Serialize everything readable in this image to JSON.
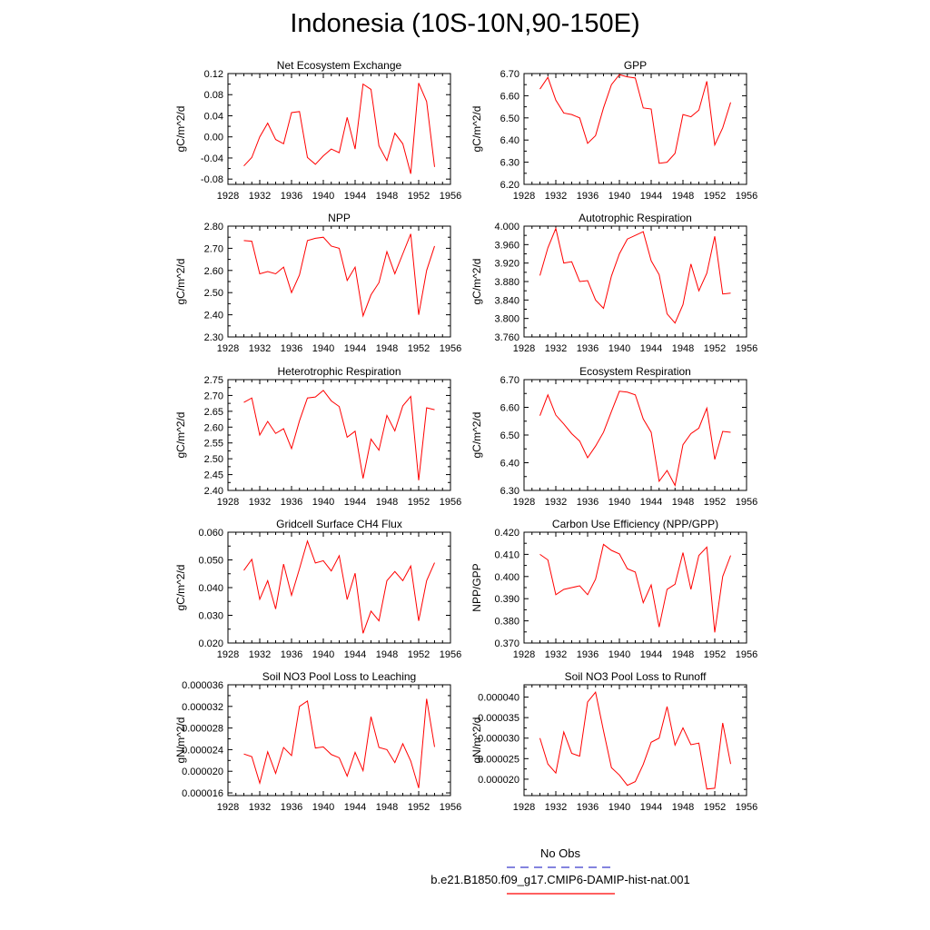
{
  "figure": {
    "title": "Indonesia (10S-10N,90-150E)",
    "line_color": "#ff0000",
    "obs_color": "#3b3bcc"
  },
  "legend": {
    "obs_label": "No Obs",
    "model_label": "b.e21.B1850.f09_g17.CMIP6-DAMIP-hist-nat.001"
  },
  "chart_data": [
    {
      "type": "line",
      "title": "Net Ecosystem Exchange",
      "xlabel": "",
      "ylabel": "gC/m^2/d",
      "xlim": [
        1928,
        1956
      ],
      "xticks": [
        1928,
        1932,
        1936,
        1940,
        1944,
        1948,
        1952,
        1956
      ],
      "ylim": [
        -0.09,
        0.12
      ],
      "yticks": [
        -0.08,
        -0.04,
        0.0,
        0.04,
        0.08,
        0.12
      ],
      "yticklabels": [
        "-0.08",
        "-0.04",
        "0.00",
        "0.04",
        "0.08",
        "0.12"
      ],
      "x": [
        1930,
        1931,
        1932,
        1933,
        1934,
        1935,
        1936,
        1937,
        1938,
        1939,
        1940,
        1941,
        1942,
        1943,
        1944,
        1945,
        1946,
        1947,
        1948,
        1949,
        1950,
        1951,
        1952,
        1953,
        1954
      ],
      "series": [
        {
          "values": [
            -0.055,
            -0.039,
            0.0,
            0.026,
            -0.005,
            -0.013,
            0.046,
            0.048,
            -0.039,
            -0.052,
            -0.036,
            -0.023,
            -0.03,
            0.037,
            -0.023,
            0.1,
            0.09,
            -0.017,
            -0.045,
            0.007,
            -0.013,
            -0.07,
            0.102,
            0.067,
            -0.057
          ]
        }
      ]
    },
    {
      "type": "line",
      "title": "GPP",
      "xlabel": "",
      "ylabel": "gC/m^2/d",
      "xlim": [
        1928,
        1956
      ],
      "xticks": [
        1928,
        1932,
        1936,
        1940,
        1944,
        1948,
        1952,
        1956
      ],
      "ylim": [
        6.2,
        6.7
      ],
      "yticks": [
        6.2,
        6.3,
        6.4,
        6.5,
        6.6,
        6.7
      ],
      "yticklabels": [
        "6.20",
        "6.30",
        "6.40",
        "6.50",
        "6.60",
        "6.70"
      ],
      "x": [
        1930,
        1931,
        1932,
        1933,
        1934,
        1935,
        1936,
        1937,
        1938,
        1939,
        1940,
        1941,
        1942,
        1943,
        1944,
        1945,
        1946,
        1947,
        1948,
        1949,
        1950,
        1951,
        1952,
        1953,
        1954
      ],
      "series": [
        {
          "values": [
            6.63,
            6.683,
            6.58,
            6.522,
            6.515,
            6.5,
            6.385,
            6.42,
            6.545,
            6.65,
            6.695,
            6.685,
            6.68,
            6.545,
            6.54,
            6.295,
            6.3,
            6.34,
            6.515,
            6.505,
            6.535,
            6.665,
            6.378,
            6.455,
            6.57
          ]
        }
      ]
    },
    {
      "type": "line",
      "title": "NPP",
      "xlabel": "",
      "ylabel": "gC/m^2/d",
      "xlim": [
        1928,
        1956
      ],
      "xticks": [
        1928,
        1932,
        1936,
        1940,
        1944,
        1948,
        1952,
        1956
      ],
      "ylim": [
        2.3,
        2.8
      ],
      "yticks": [
        2.3,
        2.4,
        2.5,
        2.6,
        2.7,
        2.8
      ],
      "yticklabels": [
        "2.30",
        "2.40",
        "2.50",
        "2.60",
        "2.70",
        "2.80"
      ],
      "x": [
        1930,
        1931,
        1932,
        1933,
        1934,
        1935,
        1936,
        1937,
        1938,
        1939,
        1940,
        1941,
        1942,
        1943,
        1944,
        1945,
        1946,
        1947,
        1948,
        1949,
        1950,
        1951,
        1952,
        1953,
        1954
      ],
      "series": [
        {
          "values": [
            2.735,
            2.732,
            2.585,
            2.595,
            2.585,
            2.615,
            2.5,
            2.58,
            2.735,
            2.745,
            2.75,
            2.71,
            2.7,
            2.555,
            2.615,
            2.395,
            2.49,
            2.545,
            2.685,
            2.585,
            2.675,
            2.765,
            2.4,
            2.6,
            2.71
          ]
        }
      ]
    },
    {
      "type": "line",
      "title": "Autotrophic Respiration",
      "xlabel": "",
      "ylabel": "gC/m^2/d",
      "xlim": [
        1928,
        1956
      ],
      "xticks": [
        1928,
        1932,
        1936,
        1940,
        1944,
        1948,
        1952,
        1956
      ],
      "ylim": [
        3.76,
        4.0
      ],
      "yticks": [
        3.76,
        3.8,
        3.84,
        3.88,
        3.92,
        3.96,
        4.0
      ],
      "yticklabels": [
        "3.760",
        "3.800",
        "3.840",
        "3.880",
        "3.920",
        "3.960",
        "4.000"
      ],
      "x": [
        1930,
        1931,
        1932,
        1933,
        1934,
        1935,
        1936,
        1937,
        1938,
        1939,
        1940,
        1941,
        1942,
        1943,
        1944,
        1945,
        1946,
        1947,
        1948,
        1949,
        1950,
        1951,
        1952,
        1953,
        1954
      ],
      "series": [
        {
          "values": [
            3.893,
            3.953,
            3.995,
            3.92,
            3.923,
            3.88,
            3.882,
            3.84,
            3.822,
            3.892,
            3.94,
            3.972,
            3.98,
            3.988,
            3.925,
            3.895,
            3.81,
            3.79,
            3.83,
            3.918,
            3.86,
            3.898,
            3.978,
            3.853,
            3.855
          ]
        }
      ]
    },
    {
      "type": "line",
      "title": "Heterotrophic Respiration",
      "xlabel": "",
      "ylabel": "gC/m^2/d",
      "xlim": [
        1928,
        1956
      ],
      "xticks": [
        1928,
        1932,
        1936,
        1940,
        1944,
        1948,
        1952,
        1956
      ],
      "ylim": [
        2.4,
        2.75
      ],
      "yticks": [
        2.4,
        2.45,
        2.5,
        2.55,
        2.6,
        2.65,
        2.7,
        2.75
      ],
      "yticklabels": [
        "2.40",
        "2.45",
        "2.50",
        "2.55",
        "2.60",
        "2.65",
        "2.70",
        "2.75"
      ],
      "x": [
        1930,
        1931,
        1932,
        1933,
        1934,
        1935,
        1936,
        1937,
        1938,
        1939,
        1940,
        1941,
        1942,
        1943,
        1944,
        1945,
        1946,
        1947,
        1948,
        1949,
        1950,
        1951,
        1952,
        1953,
        1954
      ],
      "series": [
        {
          "values": [
            2.678,
            2.692,
            2.575,
            2.618,
            2.58,
            2.595,
            2.532,
            2.62,
            2.692,
            2.695,
            2.716,
            2.683,
            2.665,
            2.568,
            2.587,
            2.438,
            2.562,
            2.527,
            2.637,
            2.588,
            2.667,
            2.697,
            2.432,
            2.661,
            2.655
          ]
        }
      ]
    },
    {
      "type": "line",
      "title": "Ecosystem Respiration",
      "xlabel": "",
      "ylabel": "gC/m^2/d",
      "xlim": [
        1928,
        1956
      ],
      "xticks": [
        1928,
        1932,
        1936,
        1940,
        1944,
        1948,
        1952,
        1956
      ],
      "ylim": [
        6.3,
        6.7
      ],
      "yticks": [
        6.3,
        6.4,
        6.5,
        6.6,
        6.7
      ],
      "yticklabels": [
        "6.30",
        "6.40",
        "6.50",
        "6.60",
        "6.70"
      ],
      "x": [
        1930,
        1931,
        1932,
        1933,
        1934,
        1935,
        1936,
        1937,
        1938,
        1939,
        1940,
        1941,
        1942,
        1943,
        1944,
        1945,
        1946,
        1947,
        1948,
        1949,
        1950,
        1951,
        1952,
        1953,
        1954
      ],
      "series": [
        {
          "values": [
            6.57,
            6.645,
            6.572,
            6.54,
            6.505,
            6.478,
            6.418,
            6.46,
            6.51,
            6.585,
            6.658,
            6.655,
            6.645,
            6.558,
            6.51,
            6.333,
            6.372,
            6.318,
            6.465,
            6.505,
            6.525,
            6.597,
            6.412,
            6.513,
            6.51
          ]
        }
      ]
    },
    {
      "type": "line",
      "title": "Gridcell Surface CH4 Flux",
      "xlabel": "",
      "ylabel": "gC/m^2/d",
      "xlim": [
        1928,
        1956
      ],
      "xticks": [
        1928,
        1932,
        1936,
        1940,
        1944,
        1948,
        1952,
        1956
      ],
      "ylim": [
        0.02,
        0.06
      ],
      "yticks": [
        0.02,
        0.03,
        0.04,
        0.05,
        0.06
      ],
      "yticklabels": [
        "0.020",
        "0.030",
        "0.040",
        "0.050",
        "0.060"
      ],
      "x": [
        1930,
        1931,
        1932,
        1933,
        1934,
        1935,
        1936,
        1937,
        1938,
        1939,
        1940,
        1941,
        1942,
        1943,
        1944,
        1945,
        1946,
        1947,
        1948,
        1949,
        1950,
        1951,
        1952,
        1953,
        1954
      ],
      "series": [
        {
          "values": [
            0.0462,
            0.0502,
            0.0358,
            0.0425,
            0.0323,
            0.0485,
            0.0372,
            0.0468,
            0.0568,
            0.0489,
            0.0497,
            0.046,
            0.0515,
            0.0357,
            0.0452,
            0.0235,
            0.0315,
            0.028,
            0.0425,
            0.0458,
            0.0425,
            0.0478,
            0.028,
            0.0425,
            0.049
          ]
        }
      ]
    },
    {
      "type": "line",
      "title": "Carbon Use Efficiency (NPP/GPP)",
      "xlabel": "",
      "ylabel": "NPP/GPP",
      "xlim": [
        1928,
        1956
      ],
      "xticks": [
        1928,
        1932,
        1936,
        1940,
        1944,
        1948,
        1952,
        1956
      ],
      "ylim": [
        0.37,
        0.42
      ],
      "yticks": [
        0.37,
        0.38,
        0.39,
        0.4,
        0.41,
        0.42
      ],
      "yticklabels": [
        "0.370",
        "0.380",
        "0.390",
        "0.400",
        "0.410",
        "0.420"
      ],
      "x": [
        1930,
        1931,
        1932,
        1933,
        1934,
        1935,
        1936,
        1937,
        1938,
        1939,
        1940,
        1941,
        1942,
        1943,
        1944,
        1945,
        1946,
        1947,
        1948,
        1949,
        1950,
        1951,
        1952,
        1953,
        1954
      ],
      "series": [
        {
          "values": [
            0.41,
            0.4075,
            0.3918,
            0.3942,
            0.395,
            0.3958,
            0.3918,
            0.3988,
            0.4145,
            0.4118,
            0.4102,
            0.4035,
            0.402,
            0.3882,
            0.3962,
            0.3772,
            0.3942,
            0.3965,
            0.4108,
            0.3942,
            0.4095,
            0.4133,
            0.3748,
            0.4,
            0.4095
          ]
        }
      ]
    },
    {
      "type": "line",
      "title": "Soil NO3 Pool Loss to Leaching",
      "xlabel": "",
      "ylabel": "gN/m^2/d",
      "xlim": [
        1928,
        1956
      ],
      "xticks": [
        1928,
        1932,
        1936,
        1940,
        1944,
        1948,
        1952,
        1956
      ],
      "ylim": [
        1.55e-05,
        3.6e-05
      ],
      "yticks": [
        1.6e-05,
        2e-05,
        2.4e-05,
        2.8e-05,
        3.2e-05,
        3.6e-05
      ],
      "yticklabels": [
        "0.000016",
        "0.000020",
        "0.000024",
        "0.000028",
        "0.000032",
        "0.000036"
      ],
      "x": [
        1930,
        1931,
        1932,
        1933,
        1934,
        1935,
        1936,
        1937,
        1938,
        1939,
        1940,
        1941,
        1942,
        1943,
        1944,
        1945,
        1946,
        1947,
        1948,
        1949,
        1950,
        1951,
        1952,
        1953,
        1954
      ],
      "series": [
        {
          "values": [
            2.32e-05,
            2.27e-05,
            1.78e-05,
            2.36e-05,
            1.96e-05,
            2.44e-05,
            2.29e-05,
            3.2e-05,
            3.3e-05,
            2.43e-05,
            2.45e-05,
            2.31e-05,
            2.25e-05,
            1.91e-05,
            2.35e-05,
            2.01e-05,
            3.01e-05,
            2.44e-05,
            2.4e-05,
            2.16e-05,
            2.51e-05,
            2.19e-05,
            1.69e-05,
            3.34e-05,
            2.45e-05
          ]
        }
      ]
    },
    {
      "type": "line",
      "title": "Soil NO3 Pool Loss to Runoff",
      "xlabel": "",
      "ylabel": "gN/m^2/d",
      "xlim": [
        1928,
        1956
      ],
      "xticks": [
        1928,
        1932,
        1936,
        1940,
        1944,
        1948,
        1952,
        1956
      ],
      "ylim": [
        1.6e-05,
        4.3e-05
      ],
      "yticks": [
        2e-05,
        2.5e-05,
        3e-05,
        3.5e-05,
        4e-05
      ],
      "yticklabels": [
        "0.000020",
        "0.000025",
        "0.000030",
        "0.000035",
        "0.000040"
      ],
      "x": [
        1930,
        1931,
        1932,
        1933,
        1934,
        1935,
        1936,
        1937,
        1938,
        1939,
        1940,
        1941,
        1942,
        1943,
        1944,
        1945,
        1946,
        1947,
        1948,
        1949,
        1950,
        1951,
        1952,
        1953,
        1954
      ],
      "series": [
        {
          "values": [
            3e-05,
            2.37e-05,
            2.15e-05,
            3.15e-05,
            2.63e-05,
            2.56e-05,
            3.88e-05,
            4.12e-05,
            3.18e-05,
            2.28e-05,
            2.1e-05,
            1.85e-05,
            1.94e-05,
            2.36e-05,
            2.9e-05,
            3e-05,
            3.77e-05,
            2.83e-05,
            3.25e-05,
            2.84e-05,
            2.88e-05,
            1.76e-05,
            1.78e-05,
            3.37e-05,
            2.37e-05
          ]
        }
      ]
    }
  ]
}
